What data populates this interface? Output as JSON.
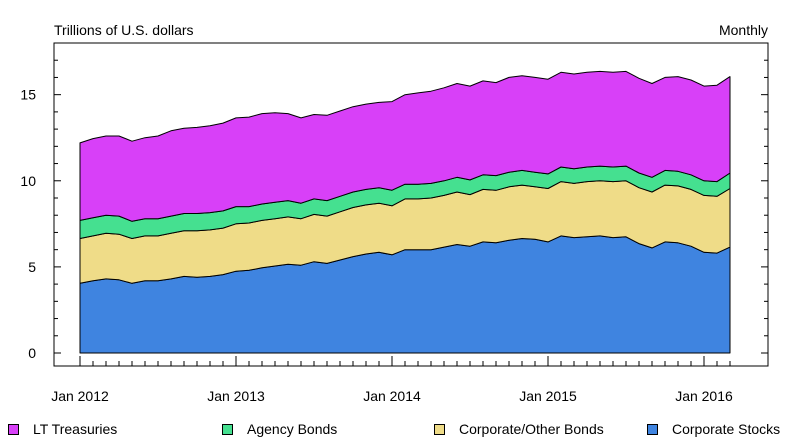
{
  "chart_data": {
    "type": "area",
    "stacked": true,
    "units_label": "Trillions of U.S. dollars",
    "frequency_label": "Monthly",
    "ylim": [
      0,
      18
    ],
    "yticks": [
      0,
      5,
      10,
      15
    ],
    "x_tick_labels": [
      "Jan 2012",
      "Jan 2013",
      "Jan 2014",
      "Jan 2015",
      "Jan 2016"
    ],
    "x": [
      "2012-01",
      "2012-02",
      "2012-03",
      "2012-04",
      "2012-05",
      "2012-06",
      "2012-07",
      "2012-08",
      "2012-09",
      "2012-10",
      "2012-11",
      "2012-12",
      "2013-01",
      "2013-02",
      "2013-03",
      "2013-04",
      "2013-05",
      "2013-06",
      "2013-07",
      "2013-08",
      "2013-09",
      "2013-10",
      "2013-11",
      "2013-12",
      "2014-01",
      "2014-02",
      "2014-03",
      "2014-04",
      "2014-05",
      "2014-06",
      "2014-07",
      "2014-08",
      "2014-09",
      "2014-10",
      "2014-11",
      "2014-12",
      "2015-01",
      "2015-02",
      "2015-03",
      "2015-04",
      "2015-05",
      "2015-06",
      "2015-07",
      "2015-08",
      "2015-09",
      "2015-10",
      "2015-11",
      "2015-12",
      "2016-01",
      "2016-02",
      "2016-03"
    ],
    "series": [
      {
        "name": "Corporate Stocks",
        "color": "#3f84e0",
        "values": [
          4.05,
          4.2,
          4.3,
          4.25,
          4.05,
          4.2,
          4.2,
          4.3,
          4.45,
          4.4,
          4.45,
          4.55,
          4.75,
          4.8,
          4.95,
          5.05,
          5.15,
          5.1,
          5.3,
          5.2,
          5.4,
          5.6,
          5.75,
          5.85,
          5.7,
          6.0,
          6.0,
          6.0,
          6.15,
          6.3,
          6.2,
          6.45,
          6.4,
          6.55,
          6.65,
          6.6,
          6.45,
          6.8,
          6.7,
          6.75,
          6.8,
          6.7,
          6.75,
          6.35,
          6.1,
          6.45,
          6.4,
          6.2,
          5.85,
          5.8,
          6.15
        ]
      },
      {
        "name": "Corporate/Other Bonds",
        "color": "#efdc88",
        "values": [
          2.6,
          2.6,
          2.65,
          2.65,
          2.6,
          2.6,
          2.6,
          2.65,
          2.65,
          2.7,
          2.7,
          2.7,
          2.75,
          2.75,
          2.75,
          2.75,
          2.75,
          2.7,
          2.75,
          2.75,
          2.8,
          2.85,
          2.85,
          2.85,
          2.85,
          2.95,
          2.95,
          3.0,
          3.0,
          3.05,
          3.0,
          3.05,
          3.05,
          3.1,
          3.1,
          3.05,
          3.1,
          3.15,
          3.15,
          3.2,
          3.2,
          3.25,
          3.25,
          3.25,
          3.25,
          3.3,
          3.3,
          3.3,
          3.3,
          3.3,
          3.4
        ]
      },
      {
        "name": "Agency Bonds",
        "color": "#45e090",
        "values": [
          1.05,
          1.05,
          1.05,
          1.05,
          1.0,
          1.0,
          1.0,
          1.0,
          1.0,
          1.0,
          1.0,
          1.0,
          1.0,
          0.95,
          0.95,
          0.95,
          0.95,
          0.9,
          0.9,
          0.9,
          0.9,
          0.9,
          0.9,
          0.9,
          0.9,
          0.85,
          0.85,
          0.85,
          0.85,
          0.85,
          0.85,
          0.85,
          0.85,
          0.85,
          0.85,
          0.85,
          0.85,
          0.85,
          0.85,
          0.85,
          0.85,
          0.85,
          0.85,
          0.85,
          0.85,
          0.85,
          0.85,
          0.85,
          0.85,
          0.85,
          0.9
        ]
      },
      {
        "name": "LT Treasuries",
        "color": "#d840f8",
        "values": [
          4.5,
          4.6,
          4.6,
          4.65,
          4.65,
          4.7,
          4.8,
          4.95,
          4.95,
          5.0,
          5.05,
          5.1,
          5.15,
          5.2,
          5.25,
          5.2,
          5.05,
          4.95,
          4.9,
          4.95,
          4.95,
          4.95,
          4.95,
          4.95,
          5.15,
          5.2,
          5.3,
          5.35,
          5.4,
          5.45,
          5.45,
          5.45,
          5.4,
          5.5,
          5.5,
          5.5,
          5.5,
          5.5,
          5.5,
          5.5,
          5.5,
          5.5,
          5.5,
          5.5,
          5.45,
          5.4,
          5.5,
          5.5,
          5.5,
          5.6,
          5.6
        ]
      }
    ]
  },
  "legend": [
    {
      "name": "LT Treasuries",
      "color": "#d840f8"
    },
    {
      "name": "Agency Bonds",
      "color": "#45e090"
    },
    {
      "name": "Corporate/Other Bonds",
      "color": "#efdc88"
    },
    {
      "name": "Corporate Stocks",
      "color": "#3f84e0"
    }
  ]
}
